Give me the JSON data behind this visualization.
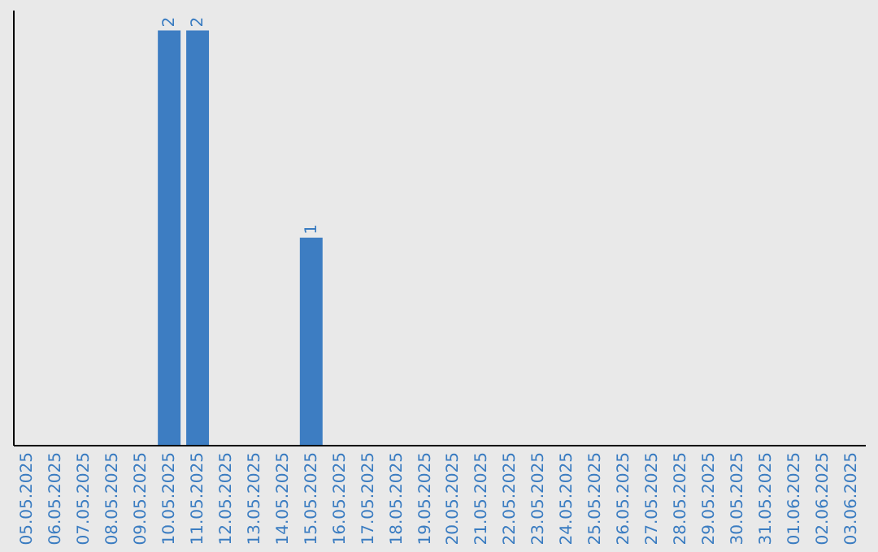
{
  "chart_data": {
    "type": "bar",
    "categories": [
      "05.05.2025",
      "06.05.2025",
      "07.05.2025",
      "08.05.2025",
      "09.05.2025",
      "10.05.2025",
      "11.05.2025",
      "12.05.2025",
      "13.05.2025",
      "14.05.2025",
      "15.05.2025",
      "16.05.2025",
      "17.05.2025",
      "18.05.2025",
      "19.05.2025",
      "20.05.2025",
      "21.05.2025",
      "22.05.2025",
      "23.05.2025",
      "24.05.2025",
      "25.05.2025",
      "26.05.2025",
      "27.05.2025",
      "28.05.2025",
      "29.05.2025",
      "30.05.2025",
      "31.05.2025",
      "01.06.2025",
      "02.06.2025",
      "03.06.2025"
    ],
    "values": [
      0,
      0,
      0,
      0,
      0,
      2,
      2,
      0,
      0,
      0,
      1,
      0,
      0,
      0,
      0,
      0,
      0,
      0,
      0,
      0,
      0,
      0,
      0,
      0,
      0,
      0,
      0,
      0,
      0,
      0
    ],
    "value_labels": [
      null,
      null,
      null,
      null,
      null,
      "2",
      "2",
      null,
      null,
      null,
      "1",
      null,
      null,
      null,
      null,
      null,
      null,
      null,
      null,
      null,
      null,
      null,
      null,
      null,
      null,
      null,
      null,
      null,
      null,
      null
    ],
    "color": "#3d7dc2",
    "ylim": [
      0,
      2.1
    ],
    "tick_labels": "x",
    "grid": false
  }
}
